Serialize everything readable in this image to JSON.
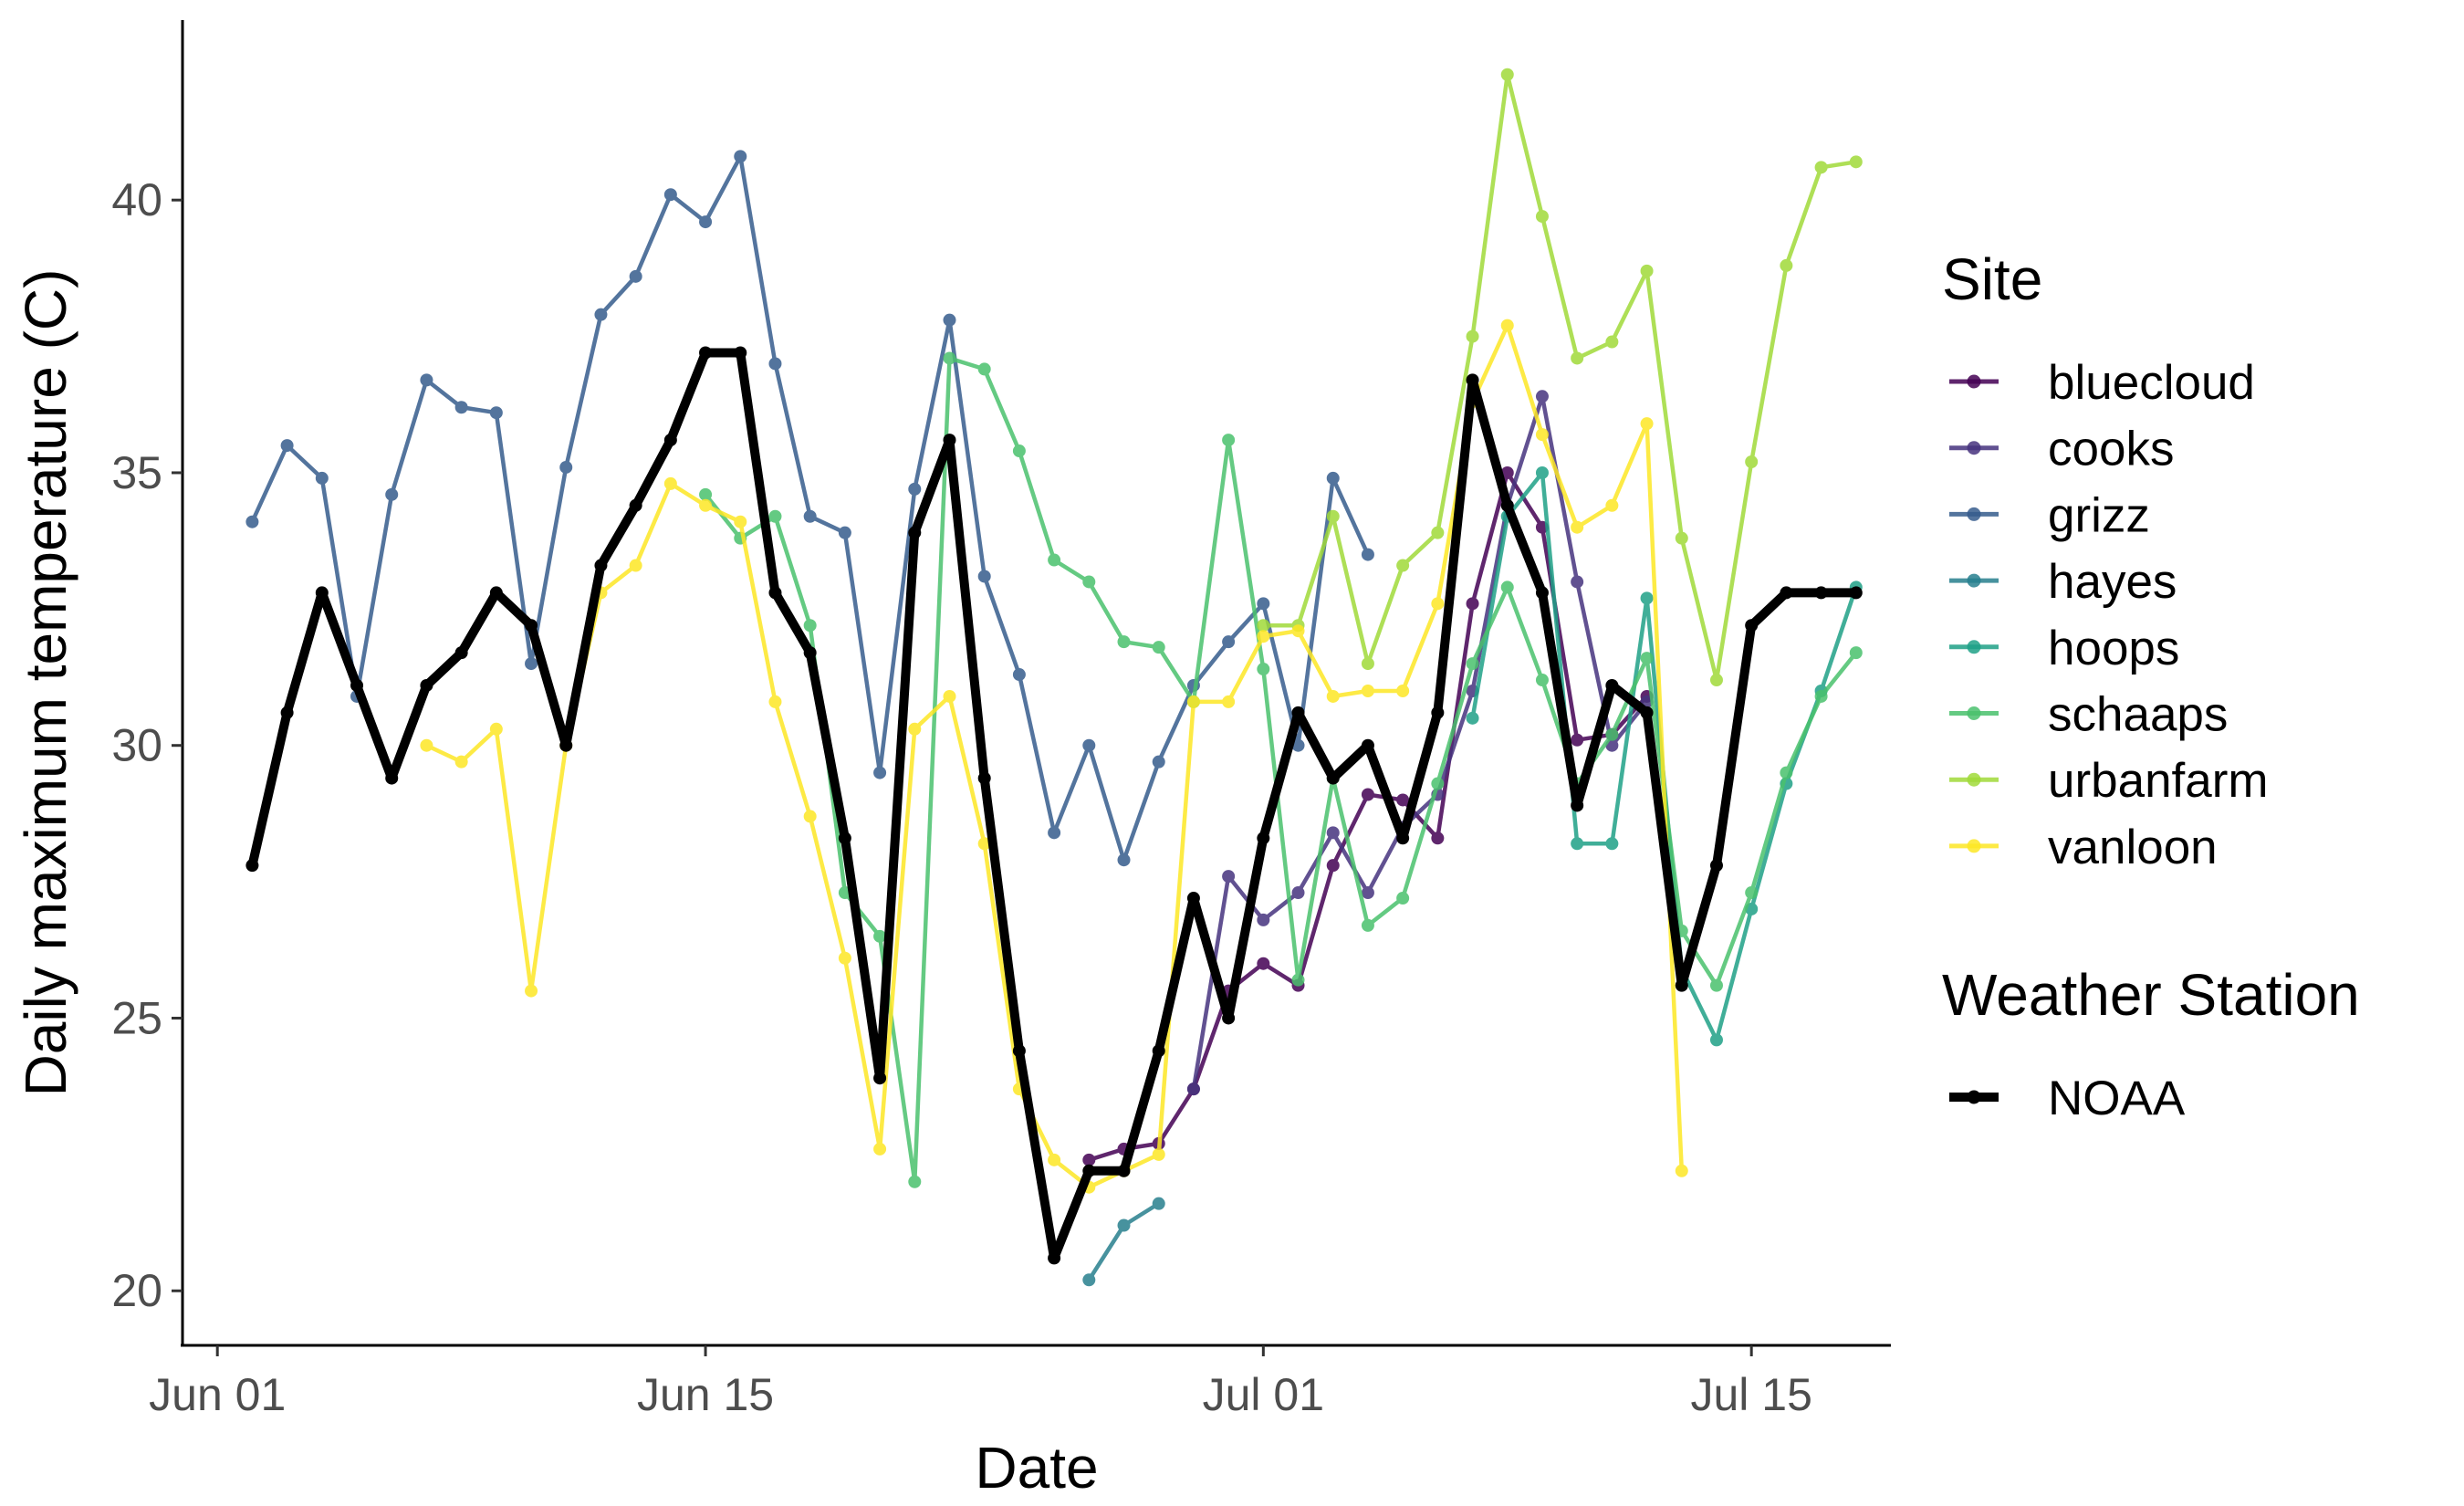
{
  "chart_data": {
    "type": "line",
    "title": "",
    "xlabel": "Date",
    "ylabel": "Daily maximum temperature (C)",
    "x_axis": {
      "type": "date",
      "range": [
        "2019-05-31",
        "2019-07-19"
      ],
      "ticks": [
        {
          "date": "2019-06-01",
          "label": "Jun 01"
        },
        {
          "date": "2019-06-15",
          "label": "Jun 15"
        },
        {
          "date": "2019-07-01",
          "label": "Jul 01"
        },
        {
          "date": "2019-07-15",
          "label": "Jul 15"
        }
      ]
    },
    "y_axis": {
      "range": [
        19.0,
        43.3
      ],
      "ticks": [
        20,
        25,
        30,
        35,
        40
      ]
    },
    "grid": false,
    "legend_position": "right",
    "legends": [
      {
        "title": "Site",
        "entries": [
          "bluecloud",
          "cooks",
          "grizz",
          "hayes",
          "hoops",
          "schaaps",
          "urbanfarm",
          "vanloon"
        ]
      },
      {
        "title": "Weather Station",
        "entries": [
          "NOAA"
        ]
      }
    ],
    "series": [
      {
        "name": "bluecloud",
        "group": "Site",
        "color": "#440154",
        "points": [
          [
            "2019-06-26",
            22.4
          ],
          [
            "2019-06-27",
            22.6
          ],
          [
            "2019-06-28",
            22.7
          ],
          [
            "2019-06-29",
            23.7
          ],
          [
            "2019-06-30",
            25.5
          ],
          [
            "2019-07-01",
            26.0
          ],
          [
            "2019-07-02",
            25.6
          ],
          [
            "2019-07-03",
            27.8
          ],
          [
            "2019-07-04",
            29.1
          ],
          [
            "2019-07-05",
            29.0
          ],
          [
            "2019-07-06",
            28.3
          ],
          [
            "2019-07-07",
            32.6
          ],
          [
            "2019-07-08",
            35.0
          ],
          [
            "2019-07-09",
            34.0
          ],
          [
            "2019-07-10",
            30.1
          ],
          [
            "2019-07-11",
            30.2
          ],
          [
            "2019-07-12",
            30.9
          ]
        ]
      },
      {
        "name": "cooks",
        "group": "Site",
        "color": "#46337E",
        "points": [
          [
            "2019-06-29",
            23.7
          ],
          [
            "2019-06-30",
            27.6
          ],
          [
            "2019-07-01",
            26.8
          ],
          [
            "2019-07-02",
            27.3
          ],
          [
            "2019-07-03",
            28.4
          ],
          [
            "2019-07-04",
            27.3
          ],
          [
            "2019-07-05",
            28.5
          ],
          [
            "2019-07-06",
            29.1
          ],
          [
            "2019-07-07",
            31.0
          ],
          [
            "2019-07-08",
            34.4
          ],
          [
            "2019-07-09",
            36.4
          ],
          [
            "2019-07-10",
            33.0
          ],
          [
            "2019-07-11",
            30.0
          ],
          [
            "2019-07-12",
            30.8
          ]
        ]
      },
      {
        "name": "grizz",
        "group": "Site",
        "color": "#365C8D",
        "points": [
          [
            "2019-06-02",
            34.1
          ],
          [
            "2019-06-03",
            35.5
          ],
          [
            "2019-06-04",
            34.9
          ],
          [
            "2019-06-05",
            30.9
          ],
          [
            "2019-06-06",
            34.6
          ],
          [
            "2019-06-07",
            36.7
          ],
          [
            "2019-06-08",
            36.2
          ],
          [
            "2019-06-09",
            36.1
          ],
          [
            "2019-06-10",
            31.5
          ],
          [
            "2019-06-11",
            35.1
          ],
          [
            "2019-06-12",
            37.9
          ],
          [
            "2019-06-13",
            38.6
          ],
          [
            "2019-06-14",
            40.1
          ],
          [
            "2019-06-15",
            39.6
          ],
          [
            "2019-06-16",
            40.8
          ],
          [
            "2019-06-17",
            37.0
          ],
          [
            "2019-06-18",
            34.2
          ],
          [
            "2019-06-19",
            33.9
          ],
          [
            "2019-06-20",
            29.5
          ],
          [
            "2019-06-21",
            34.7
          ],
          [
            "2019-06-22",
            37.8
          ],
          [
            "2019-06-23",
            33.1
          ],
          [
            "2019-06-24",
            31.3
          ],
          [
            "2019-06-25",
            28.4
          ],
          [
            "2019-06-26",
            30.0
          ],
          [
            "2019-06-27",
            27.9
          ],
          [
            "2019-06-28",
            29.7
          ],
          [
            "2019-06-29",
            31.1
          ],
          [
            "2019-06-30",
            31.9
          ],
          [
            "2019-07-01",
            32.6
          ],
          [
            "2019-07-02",
            30.0
          ],
          [
            "2019-07-03",
            34.9
          ],
          [
            "2019-07-04",
            33.5
          ]
        ]
      },
      {
        "name": "hayes",
        "group": "Site",
        "color": "#277F8E",
        "points": [
          [
            "2019-06-26",
            20.2
          ],
          [
            "2019-06-27",
            21.2
          ],
          [
            "2019-06-28",
            21.6
          ]
        ]
      },
      {
        "name": "hoops",
        "group": "Site",
        "color": "#1FA187",
        "points": [
          [
            "2019-07-07",
            30.5
          ],
          [
            "2019-07-08",
            34.2
          ],
          [
            "2019-07-09",
            35.0
          ],
          [
            "2019-07-10",
            28.2
          ],
          [
            "2019-07-11",
            28.2
          ],
          [
            "2019-07-12",
            32.7
          ],
          [
            "2019-07-13",
            25.9
          ],
          [
            "2019-07-14",
            24.6
          ],
          [
            "2019-07-15",
            27.0
          ],
          [
            "2019-07-16",
            29.3
          ],
          [
            "2019-07-17",
            31.0
          ],
          [
            "2019-07-18",
            32.9
          ]
        ]
      },
      {
        "name": "schaaps",
        "group": "Site",
        "color": "#4AC16D",
        "points": [
          [
            "2019-06-15",
            34.6
          ],
          [
            "2019-06-16",
            33.8
          ],
          [
            "2019-06-17",
            34.2
          ],
          [
            "2019-06-18",
            32.2
          ],
          [
            "2019-06-19",
            27.3
          ],
          [
            "2019-06-20",
            26.5
          ],
          [
            "2019-06-21",
            22.0
          ],
          [
            "2019-06-22",
            37.1
          ],
          [
            "2019-06-23",
            36.9
          ],
          [
            "2019-06-24",
            35.4
          ],
          [
            "2019-06-25",
            33.4
          ],
          [
            "2019-06-26",
            33.0
          ],
          [
            "2019-06-27",
            31.9
          ],
          [
            "2019-06-28",
            31.8
          ],
          [
            "2019-06-29",
            30.8
          ],
          [
            "2019-06-30",
            35.6
          ],
          [
            "2019-07-01",
            31.4
          ],
          [
            "2019-07-02",
            25.7
          ],
          [
            "2019-07-03",
            29.4
          ],
          [
            "2019-07-04",
            26.7
          ],
          [
            "2019-07-05",
            27.2
          ],
          [
            "2019-07-06",
            29.3
          ],
          [
            "2019-07-07",
            31.5
          ],
          [
            "2019-07-08",
            32.9
          ],
          [
            "2019-07-09",
            31.2
          ],
          [
            "2019-07-10",
            29.3
          ],
          [
            "2019-07-11",
            30.2
          ],
          [
            "2019-07-12",
            31.6
          ],
          [
            "2019-07-13",
            26.6
          ],
          [
            "2019-07-14",
            25.6
          ],
          [
            "2019-07-15",
            27.3
          ],
          [
            "2019-07-16",
            29.5
          ],
          [
            "2019-07-17",
            30.9
          ],
          [
            "2019-07-18",
            31.7
          ]
        ]
      },
      {
        "name": "urbanfarm",
        "group": "Site",
        "color": "#A0DA39",
        "points": [
          [
            "2019-07-01",
            32.2
          ],
          [
            "2019-07-02",
            32.2
          ],
          [
            "2019-07-03",
            34.2
          ],
          [
            "2019-07-04",
            31.5
          ],
          [
            "2019-07-05",
            33.3
          ],
          [
            "2019-07-06",
            33.9
          ],
          [
            "2019-07-07",
            37.5
          ],
          [
            "2019-07-08",
            42.3
          ],
          [
            "2019-07-09",
            39.7
          ],
          [
            "2019-07-10",
            37.1
          ],
          [
            "2019-07-11",
            37.4
          ],
          [
            "2019-07-12",
            38.7
          ],
          [
            "2019-07-13",
            33.8
          ],
          [
            "2019-07-14",
            31.2
          ],
          [
            "2019-07-15",
            35.2
          ],
          [
            "2019-07-16",
            38.8
          ],
          [
            "2019-07-17",
            40.6
          ],
          [
            "2019-07-18",
            40.7
          ]
        ]
      },
      {
        "name": "vanloon",
        "group": "Site",
        "color": "#FDE725",
        "points": [
          [
            "2019-06-07",
            30.0
          ],
          [
            "2019-06-08",
            29.7
          ],
          [
            "2019-06-09",
            30.3
          ],
          [
            "2019-06-10",
            25.5
          ],
          [
            "2019-06-11",
            30.0
          ],
          [
            "2019-06-12",
            32.8
          ],
          [
            "2019-06-13",
            33.3
          ],
          [
            "2019-06-14",
            34.8
          ],
          [
            "2019-06-15",
            34.4
          ],
          [
            "2019-06-16",
            34.1
          ],
          [
            "2019-06-17",
            30.8
          ],
          [
            "2019-06-18",
            28.7
          ],
          [
            "2019-06-19",
            26.1
          ],
          [
            "2019-06-20",
            22.6
          ],
          [
            "2019-06-21",
            30.3
          ],
          [
            "2019-06-22",
            30.9
          ],
          [
            "2019-06-23",
            28.2
          ],
          [
            "2019-06-24",
            23.7
          ],
          [
            "2019-06-25",
            22.4
          ],
          [
            "2019-06-26",
            21.9
          ],
          [
            "2019-06-27",
            22.2
          ],
          [
            "2019-06-28",
            22.5
          ],
          [
            "2019-06-29",
            30.8
          ],
          [
            "2019-06-30",
            30.8
          ],
          [
            "2019-07-01",
            32.0
          ],
          [
            "2019-07-02",
            32.1
          ],
          [
            "2019-07-03",
            30.9
          ],
          [
            "2019-07-04",
            31.0
          ],
          [
            "2019-07-05",
            31.0
          ],
          [
            "2019-07-06",
            32.6
          ],
          [
            "2019-07-07",
            36.3
          ],
          [
            "2019-07-08",
            37.7
          ],
          [
            "2019-07-09",
            35.7
          ],
          [
            "2019-07-10",
            34.0
          ],
          [
            "2019-07-11",
            34.4
          ],
          [
            "2019-07-12",
            35.9
          ],
          [
            "2019-07-13",
            22.2
          ]
        ]
      },
      {
        "name": "NOAA",
        "group": "Weather Station",
        "color": "#000000",
        "points": [
          [
            "2019-06-02",
            27.8
          ],
          [
            "2019-06-03",
            30.6
          ],
          [
            "2019-06-04",
            32.8
          ],
          [
            "2019-06-05",
            31.1
          ],
          [
            "2019-06-06",
            29.4
          ],
          [
            "2019-06-07",
            31.1
          ],
          [
            "2019-06-08",
            31.7
          ],
          [
            "2019-06-09",
            32.8
          ],
          [
            "2019-06-10",
            32.2
          ],
          [
            "2019-06-11",
            30.0
          ],
          [
            "2019-06-12",
            33.3
          ],
          [
            "2019-06-13",
            34.4
          ],
          [
            "2019-06-14",
            35.6
          ],
          [
            "2019-06-15",
            37.2
          ],
          [
            "2019-06-16",
            37.2
          ],
          [
            "2019-06-17",
            32.8
          ],
          [
            "2019-06-18",
            31.7
          ],
          [
            "2019-06-19",
            28.3
          ],
          [
            "2019-06-20",
            23.9
          ],
          [
            "2019-06-21",
            33.9
          ],
          [
            "2019-06-22",
            35.6
          ],
          [
            "2019-06-23",
            29.4
          ],
          [
            "2019-06-24",
            24.4
          ],
          [
            "2019-06-25",
            20.6
          ],
          [
            "2019-06-26",
            22.2
          ],
          [
            "2019-06-27",
            22.2
          ],
          [
            "2019-06-28",
            24.4
          ],
          [
            "2019-06-29",
            27.2
          ],
          [
            "2019-06-30",
            25.0
          ],
          [
            "2019-07-01",
            28.3
          ],
          [
            "2019-07-02",
            30.6
          ],
          [
            "2019-07-03",
            29.4
          ],
          [
            "2019-07-04",
            30.0
          ],
          [
            "2019-07-05",
            28.3
          ],
          [
            "2019-07-06",
            30.6
          ],
          [
            "2019-07-07",
            36.7
          ],
          [
            "2019-07-08",
            34.4
          ],
          [
            "2019-07-09",
            32.8
          ],
          [
            "2019-07-10",
            28.9
          ],
          [
            "2019-07-11",
            31.1
          ],
          [
            "2019-07-12",
            30.6
          ],
          [
            "2019-07-13",
            25.6
          ],
          [
            "2019-07-14",
            27.8
          ],
          [
            "2019-07-15",
            32.2
          ],
          [
            "2019-07-16",
            32.8
          ],
          [
            "2019-07-17",
            32.8
          ],
          [
            "2019-07-18",
            32.8
          ]
        ]
      }
    ]
  }
}
